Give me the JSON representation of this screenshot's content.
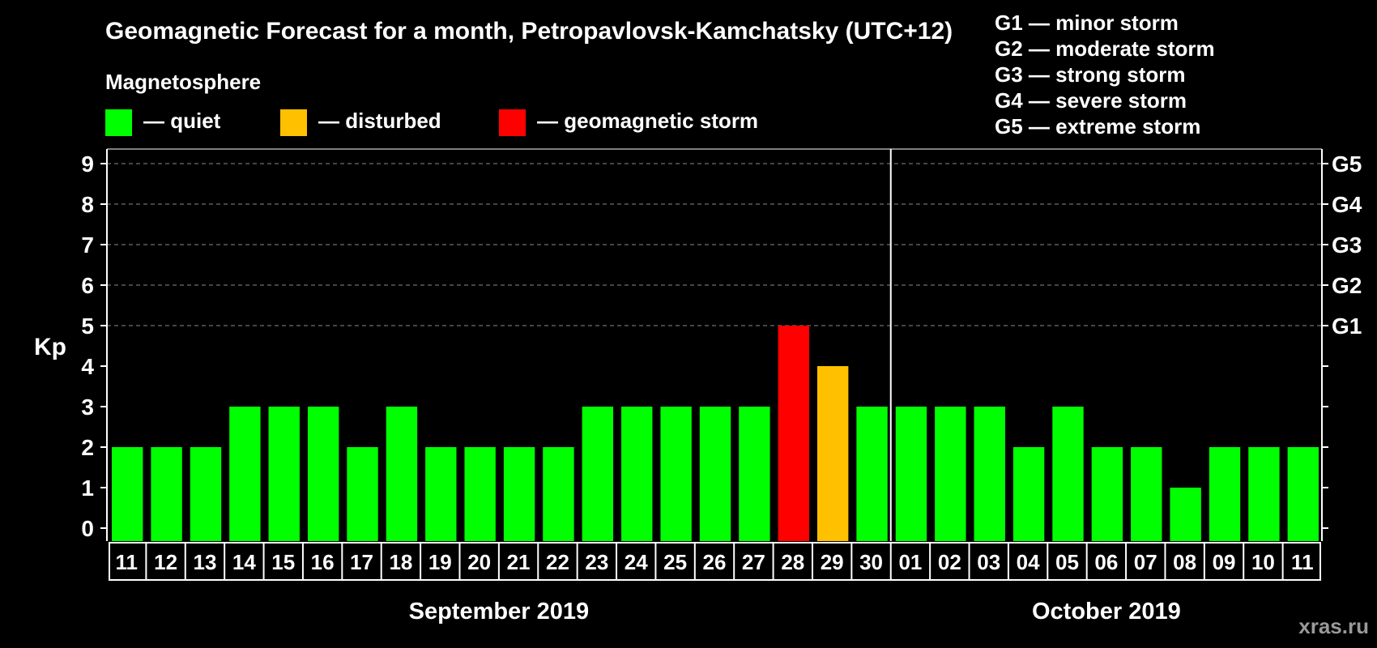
{
  "chart_data": {
    "type": "bar",
    "title": "Geomagnetic Forecast for a month, Petropavlovsk-Kamchatsky (UTC+12)",
    "legend_heading": "Magnetosphere",
    "legend": [
      {
        "label": "— quiet",
        "color": "#00ff00"
      },
      {
        "label": "— disturbed",
        "color": "#ffc000"
      },
      {
        "label": "— geomagnetic storm",
        "color": "#ff0000"
      }
    ],
    "storm_scale": [
      "G1 — minor storm",
      "G2 — moderate storm",
      "G3 — strong storm",
      "G4 — severe storm",
      "G5 — extreme storm"
    ],
    "ylabel": "Kp",
    "ylim": [
      0,
      9
    ],
    "yticks": [
      "0",
      "1",
      "2",
      "3",
      "4",
      "5",
      "6",
      "7",
      "8",
      "9"
    ],
    "right_ticks": [
      {
        "kp": 5,
        "label": "G1"
      },
      {
        "kp": 6,
        "label": "G2"
      },
      {
        "kp": 7,
        "label": "G3"
      },
      {
        "kp": 8,
        "label": "G4"
      },
      {
        "kp": 9,
        "label": "G5"
      }
    ],
    "grid": true,
    "categories": [
      "11",
      "12",
      "13",
      "14",
      "15",
      "16",
      "17",
      "18",
      "19",
      "20",
      "21",
      "22",
      "23",
      "24",
      "25",
      "26",
      "27",
      "28",
      "29",
      "30",
      "01",
      "02",
      "03",
      "04",
      "05",
      "06",
      "07",
      "08",
      "09",
      "10",
      "11"
    ],
    "values": [
      2,
      2,
      2,
      3,
      3,
      3,
      2,
      3,
      2,
      2,
      2,
      2,
      3,
      3,
      3,
      3,
      3,
      5,
      4,
      3,
      3,
      3,
      3,
      2,
      3,
      2,
      2,
      1,
      2,
      2,
      2
    ],
    "colors": {
      "quiet": "#00ff00",
      "disturbed": "#ffc000",
      "storm": "#ff0000"
    },
    "months": [
      {
        "label": "September 2019",
        "start": 0,
        "end": 19
      },
      {
        "label": "October 2019",
        "start": 20,
        "end": 30
      }
    ],
    "watermark": "xras.ru"
  }
}
